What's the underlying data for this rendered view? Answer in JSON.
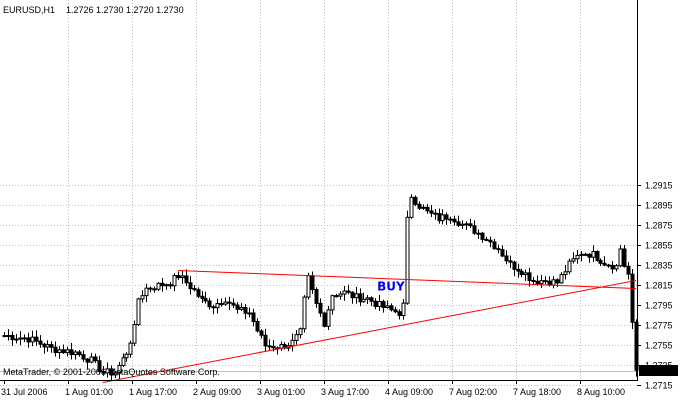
{
  "header": {
    "symbol": "EURUSD,H1",
    "ohlc": "1.2726 1.2730 1.2720 1.2730"
  },
  "footer": {
    "copyright": "MetaTrader, © 2001-2006 MetaQuotes Software Corp."
  },
  "annotation": {
    "text": "BUY",
    "color": "#0000ff"
  },
  "colors": {
    "background": "#ffffff",
    "grid": "#c0c0c0",
    "candle": "#000000",
    "trendline": "#ff0000",
    "price_box": "#000000",
    "price_box_text": "#ffffff"
  },
  "current_price": "1.2730",
  "chart_data": {
    "type": "candlestick",
    "title": "EURUSD,H1",
    "ylim": [
      1.2707,
      1.2923
    ],
    "price_ticks": [
      {
        "value": 1.2915,
        "label": "1.2915"
      },
      {
        "value": 1.2895,
        "label": "1.2895"
      },
      {
        "value": 1.2875,
        "label": "1.2875"
      },
      {
        "value": 1.2855,
        "label": "1.2855"
      },
      {
        "value": 1.2835,
        "label": "1.2835"
      },
      {
        "value": 1.2815,
        "label": "1.2815"
      },
      {
        "value": 1.2795,
        "label": "1.2795"
      },
      {
        "value": 1.2775,
        "label": "1.2775"
      },
      {
        "value": 1.2755,
        "label": "1.2755"
      },
      {
        "value": 1.2735,
        "label": "1.2735"
      },
      {
        "value": 1.2715,
        "label": "1.2715"
      }
    ],
    "time_labels": [
      "31 Jul 2006",
      "1 Aug 01:00",
      "1 Aug 17:00",
      "2 Aug 09:00",
      "3 Aug 01:00",
      "3 Aug 17:00",
      "4 Aug 09:00",
      "7 Aug 02:00",
      "7 Aug 18:00",
      "8 Aug 10:00"
    ],
    "anchors": [
      [
        0,
        1.2765
      ],
      [
        6,
        1.2762
      ],
      [
        12,
        1.2752
      ],
      [
        18,
        1.2748
      ],
      [
        22,
        1.274
      ],
      [
        25,
        1.2728
      ],
      [
        28,
        1.2728
      ],
      [
        31,
        1.2748
      ],
      [
        33,
        1.2772
      ],
      [
        34,
        1.2802
      ],
      [
        36,
        1.2812
      ],
      [
        39,
        1.2815
      ],
      [
        42,
        1.2818
      ],
      [
        44,
        1.2825
      ],
      [
        46,
        1.2818
      ],
      [
        48,
        1.281
      ],
      [
        50,
        1.28
      ],
      [
        53,
        1.2795
      ],
      [
        56,
        1.2802
      ],
      [
        59,
        1.279
      ],
      [
        62,
        1.2788
      ],
      [
        64,
        1.277
      ],
      [
        66,
        1.2755
      ],
      [
        70,
        1.2754
      ],
      [
        73,
        1.2758
      ],
      [
        75,
        1.2768
      ],
      [
        76,
        1.28
      ],
      [
        77,
        1.2822
      ],
      [
        79,
        1.2796
      ],
      [
        81,
        1.2778
      ],
      [
        83,
        1.2806
      ],
      [
        86,
        1.2808
      ],
      [
        89,
        1.2803
      ],
      [
        92,
        1.2802
      ],
      [
        95,
        1.2795
      ],
      [
        98,
        1.279
      ],
      [
        100,
        1.2788
      ],
      [
        101,
        1.2795
      ],
      [
        102,
        1.288
      ],
      [
        103,
        1.2905
      ],
      [
        105,
        1.2895
      ],
      [
        107,
        1.2888
      ],
      [
        110,
        1.2882
      ],
      [
        113,
        1.2885
      ],
      [
        116,
        1.2876
      ],
      [
        119,
        1.287
      ],
      [
        122,
        1.2862
      ],
      [
        125,
        1.2852
      ],
      [
        128,
        1.2836
      ],
      [
        131,
        1.283
      ],
      [
        134,
        1.282
      ],
      [
        137,
        1.282
      ],
      [
        140,
        1.2818
      ],
      [
        143,
        1.2836
      ],
      [
        146,
        1.2848
      ],
      [
        149,
        1.2846
      ],
      [
        152,
        1.2838
      ],
      [
        155,
        1.2834
      ],
      [
        156,
        1.2852
      ],
      [
        157,
        1.2835
      ],
      [
        158,
        1.2826
      ],
      [
        159,
        1.2775
      ],
      [
        160,
        1.273
      ]
    ],
    "trendlines": [
      {
        "from": {
          "bar": 44,
          "price": 1.283
        },
        "to": {
          "bar": 160,
          "price": 1.2812
        }
      },
      {
        "from": {
          "bar": 25,
          "price": 1.2718
        },
        "to": {
          "bar": 160,
          "price": 1.282
        }
      }
    ],
    "annotation_at": {
      "bar": 97,
      "price": 1.2815
    }
  }
}
